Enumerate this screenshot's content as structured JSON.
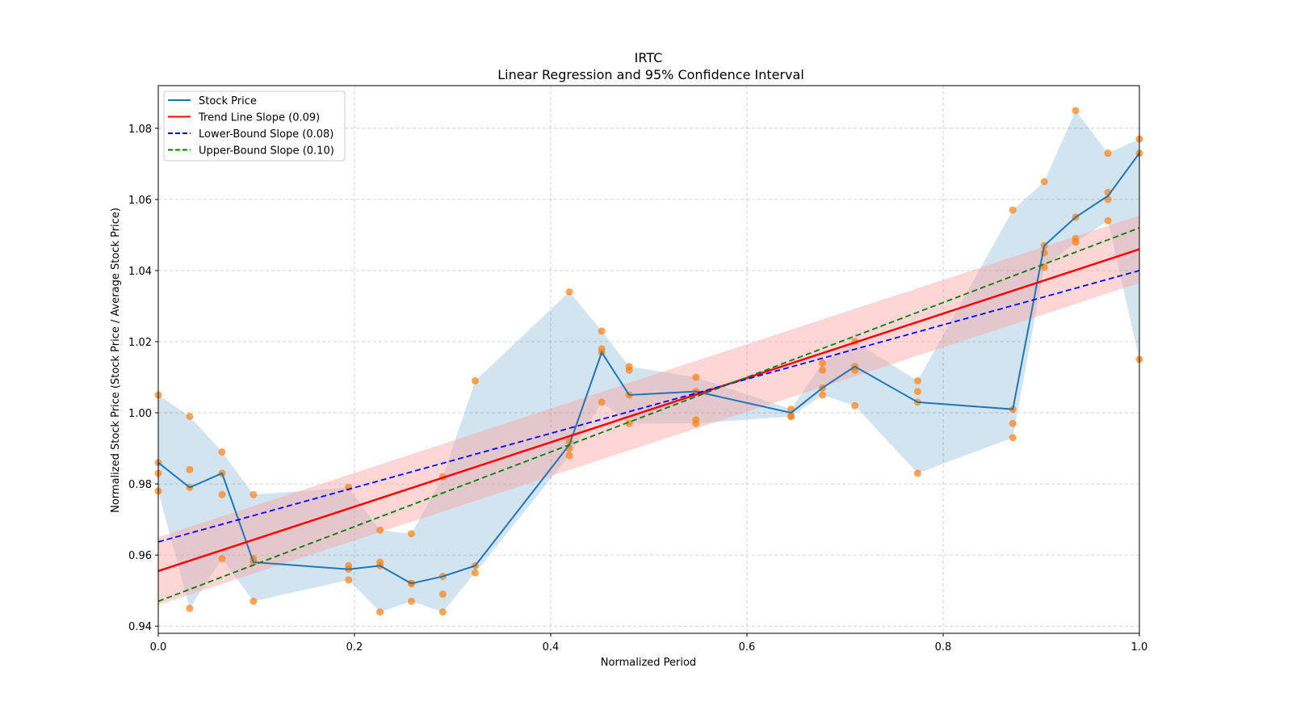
{
  "chart_data": {
    "type": "line",
    "title": "IRTC",
    "subtitle": "Linear Regression and 95% Confidence Interval",
    "xlabel": "Normalized Period",
    "ylabel": "Normalized Stock Price (Stock Price / Average Stock Price)",
    "xlim": [
      0.0,
      1.0
    ],
    "ylim": [
      0.938,
      1.092
    ],
    "xticks": [
      "0.0",
      "0.2",
      "0.4",
      "0.6",
      "0.8",
      "1.0"
    ],
    "xtick_values": [
      0.0,
      0.2,
      0.4,
      0.6,
      0.8,
      1.0
    ],
    "yticks": [
      "0.94",
      "0.96",
      "0.98",
      "1.00",
      "1.02",
      "1.04",
      "1.06",
      "1.08"
    ],
    "ytick_values": [
      0.94,
      0.96,
      0.98,
      1.0,
      1.02,
      1.04,
      1.06,
      1.08
    ],
    "grid": true,
    "legend_position": "top-left",
    "legend": [
      {
        "label": "Stock Price",
        "color": "#1f77b4",
        "style": "solid"
      },
      {
        "label": "Trend Line Slope (0.09)",
        "color": "#ff0000",
        "style": "solid"
      },
      {
        "label": "Lower-Bound Slope (0.08)",
        "color": "#0000ff",
        "style": "dashed"
      },
      {
        "label": "Upper-Bound Slope (0.10)",
        "color": "#008000",
        "style": "dashed"
      }
    ],
    "colors": {
      "stock_line": "#1f77b4",
      "band_fill": "#1f77b4",
      "scatter": "#ff7f0e",
      "trend": "#ff0000",
      "trend_ci": "#ff9999",
      "lower": "#0000ff",
      "upper": "#008000"
    },
    "x": [
      0.0,
      0.032,
      0.065,
      0.097,
      0.194,
      0.226,
      0.258,
      0.29,
      0.323,
      0.419,
      0.452,
      0.48,
      0.548,
      0.645,
      0.677,
      0.71,
      0.774,
      0.871,
      0.903,
      0.935,
      0.968,
      1.0
    ],
    "series": [
      {
        "name": "Stock Price",
        "values": [
          0.986,
          0.979,
          0.983,
          0.958,
          0.956,
          0.957,
          0.952,
          0.954,
          0.957,
          0.991,
          1.017,
          1.005,
          1.006,
          1.0,
          1.007,
          1.013,
          1.003,
          1.001,
          1.047,
          1.055,
          1.061,
          1.073
        ]
      }
    ],
    "band": {
      "lower": [
        0.978,
        0.945,
        0.959,
        0.947,
        0.953,
        0.944,
        0.947,
        0.944,
        0.955,
        0.988,
        1.003,
        0.997,
        0.997,
        0.999,
        1.005,
        1.002,
        0.983,
        0.993,
        1.041,
        1.048,
        1.054,
        1.015
      ],
      "upper": [
        1.005,
        0.999,
        0.989,
        0.977,
        0.979,
        0.967,
        0.966,
        0.982,
        1.009,
        1.034,
        1.023,
        1.013,
        1.01,
        1.001,
        1.014,
        1.02,
        1.009,
        1.057,
        1.065,
        1.085,
        1.073,
        1.077
      ]
    },
    "scatter": [
      [
        0.0,
        1.005
      ],
      [
        0.0,
        0.986
      ],
      [
        0.0,
        0.983
      ],
      [
        0.0,
        0.978
      ],
      [
        0.032,
        0.999
      ],
      [
        0.032,
        0.984
      ],
      [
        0.032,
        0.979
      ],
      [
        0.032,
        0.945
      ],
      [
        0.065,
        0.989
      ],
      [
        0.065,
        0.983
      ],
      [
        0.065,
        0.977
      ],
      [
        0.065,
        0.959
      ],
      [
        0.097,
        0.977
      ],
      [
        0.097,
        0.959
      ],
      [
        0.097,
        0.958
      ],
      [
        0.097,
        0.947
      ],
      [
        0.194,
        0.979
      ],
      [
        0.194,
        0.957
      ],
      [
        0.194,
        0.956
      ],
      [
        0.194,
        0.953
      ],
      [
        0.226,
        0.967
      ],
      [
        0.226,
        0.958
      ],
      [
        0.226,
        0.957
      ],
      [
        0.226,
        0.944
      ],
      [
        0.258,
        0.966
      ],
      [
        0.258,
        0.952
      ],
      [
        0.258,
        0.952
      ],
      [
        0.258,
        0.947
      ],
      [
        0.29,
        0.982
      ],
      [
        0.29,
        0.954
      ],
      [
        0.29,
        0.949
      ],
      [
        0.29,
        0.944
      ],
      [
        0.323,
        1.009
      ],
      [
        0.323,
        0.957
      ],
      [
        0.323,
        0.955
      ],
      [
        0.419,
        1.034
      ],
      [
        0.419,
        0.992
      ],
      [
        0.419,
        0.99
      ],
      [
        0.419,
        0.988
      ],
      [
        0.452,
        1.023
      ],
      [
        0.452,
        1.018
      ],
      [
        0.452,
        1.017
      ],
      [
        0.452,
        1.003
      ],
      [
        0.48,
        1.013
      ],
      [
        0.48,
        1.012
      ],
      [
        0.48,
        1.005
      ],
      [
        0.48,
        0.997
      ],
      [
        0.548,
        1.01
      ],
      [
        0.548,
        1.006
      ],
      [
        0.548,
        0.998
      ],
      [
        0.548,
        0.997
      ],
      [
        0.645,
        1.001
      ],
      [
        0.645,
        0.999
      ],
      [
        0.645,
        0.999
      ],
      [
        0.677,
        1.014
      ],
      [
        0.677,
        1.012
      ],
      [
        0.677,
        1.007
      ],
      [
        0.677,
        1.005
      ],
      [
        0.71,
        1.02
      ],
      [
        0.71,
        1.013
      ],
      [
        0.71,
        1.012
      ],
      [
        0.71,
        1.002
      ],
      [
        0.774,
        1.009
      ],
      [
        0.774,
        1.006
      ],
      [
        0.774,
        1.003
      ],
      [
        0.774,
        0.983
      ],
      [
        0.871,
        1.057
      ],
      [
        0.871,
        1.001
      ],
      [
        0.871,
        0.997
      ],
      [
        0.871,
        0.993
      ],
      [
        0.903,
        1.065
      ],
      [
        0.903,
        1.047
      ],
      [
        0.903,
        1.045
      ],
      [
        0.903,
        1.041
      ],
      [
        0.935,
        1.085
      ],
      [
        0.935,
        1.055
      ],
      [
        0.935,
        1.049
      ],
      [
        0.935,
        1.048
      ],
      [
        0.968,
        1.073
      ],
      [
        0.968,
        1.062
      ],
      [
        0.968,
        1.06
      ],
      [
        0.968,
        1.054
      ],
      [
        1.0,
        1.077
      ],
      [
        1.0,
        1.073
      ],
      [
        1.0,
        1.015
      ]
    ],
    "trend_line": {
      "slope": 0.09,
      "start": 0.9555,
      "end": 1.046,
      "ci_halfwidth": 0.0095
    },
    "lower_bound_line": {
      "slope": 0.08,
      "start": 0.9637,
      "end": 1.04
    },
    "upper_bound_line": {
      "slope": 0.1,
      "start": 0.947,
      "end": 1.052
    }
  }
}
